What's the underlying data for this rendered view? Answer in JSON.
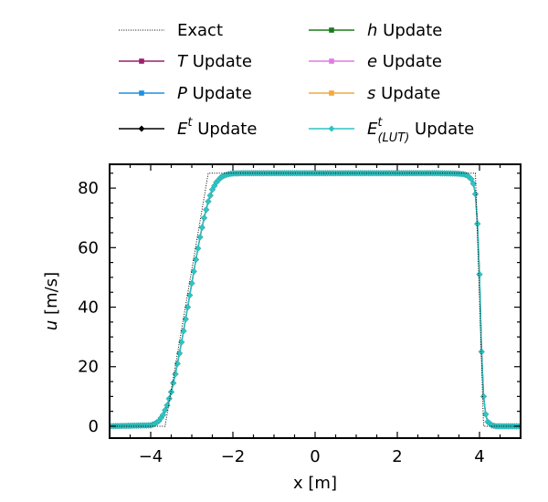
{
  "chart_data": {
    "type": "line",
    "xlabel": "x [m]",
    "ylabel_var": "u",
    "ylabel_unit": " [m/s]",
    "xlim": [
      -5,
      5
    ],
    "ylim": [
      -4,
      88
    ],
    "xticks": [
      -4,
      -2,
      0,
      2,
      4
    ],
    "yticks": [
      0,
      20,
      40,
      60,
      80
    ],
    "grid": false,
    "legend_position": "top, outside plot, two columns",
    "legend": [
      {
        "key": "exact",
        "parts": [
          {
            "t": "Exact"
          }
        ],
        "color": "#000000",
        "style": "dotted",
        "marker": "none"
      },
      {
        "key": "t_update",
        "parts": [
          {
            "t": "T",
            "i": true
          },
          {
            "t": " Update"
          }
        ],
        "color": "#9c1f6e",
        "style": "solid",
        "marker": "square"
      },
      {
        "key": "p_update",
        "parts": [
          {
            "t": "P",
            "i": true
          },
          {
            "t": " Update"
          }
        ],
        "color": "#1f8fe0",
        "style": "solid",
        "marker": "square"
      },
      {
        "key": "et_update",
        "parts": [
          {
            "t": "E",
            "i": true
          },
          {
            "t": "t",
            "i": true,
            "sup": true
          },
          {
            "t": " Update"
          }
        ],
        "color": "#000000",
        "style": "solid",
        "marker": "diamond"
      },
      {
        "key": "h_update",
        "parts": [
          {
            "t": "h",
            "i": true
          },
          {
            "t": " Update"
          }
        ],
        "color": "#1b7a1b",
        "style": "solid",
        "marker": "square"
      },
      {
        "key": "e_update",
        "parts": [
          {
            "t": "e",
            "i": true
          },
          {
            "t": " Update"
          }
        ],
        "color": "#e07be0",
        "style": "solid",
        "marker": "square"
      },
      {
        "key": "s_update",
        "parts": [
          {
            "t": "s",
            "i": true
          },
          {
            "t": " Update"
          }
        ],
        "color": "#f2a93b",
        "style": "solid",
        "marker": "square"
      },
      {
        "key": "etlut_update",
        "parts": [
          {
            "t": "E",
            "i": true
          },
          {
            "t": "t",
            "i": true,
            "sup": true
          },
          {
            "t": "(LUT)",
            "i": true,
            "sub": true
          },
          {
            "t": " Update"
          }
        ],
        "color": "#2ec4c4",
        "style": "solid",
        "marker": "diamond"
      }
    ],
    "series": [
      {
        "key": "exact",
        "x": [
          -5,
          -3.65,
          -2.6,
          3.9,
          4.1,
          5
        ],
        "y": [
          0,
          0,
          85,
          85,
          0,
          0
        ]
      },
      {
        "key": "numerical",
        "x": [
          -5,
          -4.0,
          -3.9,
          -3.8,
          -3.7,
          -3.6,
          -3.5,
          -3.4,
          -3.3,
          -3.2,
          -3.1,
          -3.0,
          -2.9,
          -2.8,
          -2.7,
          -2.6,
          -2.5,
          -2.4,
          -2.3,
          -2.2,
          -2.1,
          -2.0,
          -1.8,
          -1.5,
          0,
          2.0,
          3.0,
          3.4,
          3.6,
          3.7,
          3.8,
          3.85,
          3.9,
          3.95,
          4.0,
          4.05,
          4.1,
          4.15,
          4.2,
          4.3,
          4.4,
          5
        ],
        "y": [
          0,
          0.3,
          0.8,
          1.8,
          3.8,
          7.0,
          11.5,
          17.5,
          24.5,
          32.0,
          40.0,
          48.0,
          56.0,
          63.5,
          70.0,
          75.5,
          79.5,
          82.0,
          83.5,
          84.3,
          84.7,
          84.9,
          85,
          85,
          85,
          85,
          85,
          84.9,
          84.7,
          84.3,
          83.0,
          81.5,
          78.0,
          68.0,
          51.0,
          25.0,
          10.0,
          4.0,
          1.5,
          0.3,
          0,
          0
        ]
      }
    ]
  }
}
